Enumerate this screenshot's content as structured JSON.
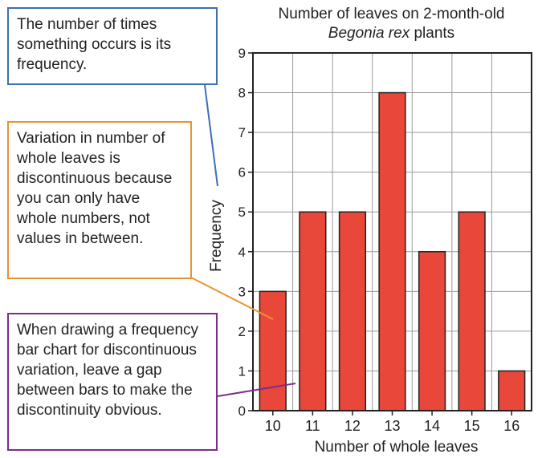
{
  "annotations": {
    "frequency_note": "The number of times something occurs is its frequency.",
    "discontinuous_note": "Variation in number of whole leaves is discontinuous because you can only have whole numbers, not values in between.",
    "gap_note": "When drawing a frequency bar chart for discontinuous variation, leave a gap between bars to make the discontinuity obvious."
  },
  "colors": {
    "bar_fill": "#e8473a",
    "frequency_note_border": "#3b6fb6",
    "discontinuous_note_border": "#e8952f",
    "gap_note_border": "#7b2d8e"
  },
  "chart_data": {
    "type": "bar",
    "title_line1": "Number of leaves on 2-month-old",
    "title_species": "Begonia rex",
    "title_suffix": " plants",
    "xlabel": "Number of whole leaves",
    "ylabel": "Frequency",
    "categories": [
      "10",
      "11",
      "12",
      "13",
      "14",
      "15",
      "16"
    ],
    "values": [
      3,
      5,
      5,
      8,
      4,
      5,
      1
    ],
    "ylim": [
      0,
      9
    ],
    "yticks": [
      "0",
      "1",
      "2",
      "3",
      "4",
      "5",
      "6",
      "7",
      "8",
      "9"
    ],
    "grid": true
  }
}
